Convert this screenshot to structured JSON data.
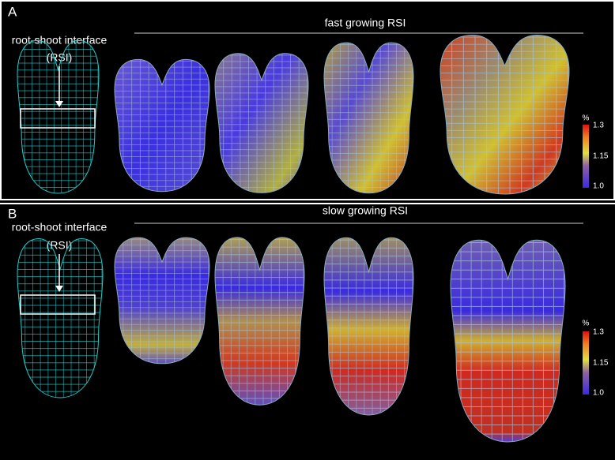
{
  "panels": [
    {
      "label": "A",
      "interface_label": "root-shoot interface",
      "interface_abbr": "(RSI)",
      "title": "fast growing RSI",
      "colorbar": {
        "unit": "%",
        "ticks": [
          "1.3",
          "1.15",
          "1.0"
        ]
      }
    },
    {
      "label": "B",
      "interface_label": "root-shoot interface",
      "interface_abbr": "(RSI)",
      "title": "slow growing RSI",
      "colorbar": {
        "unit": "%",
        "ticks": [
          "1.3",
          "1.15",
          "1.0"
        ]
      }
    }
  ]
}
